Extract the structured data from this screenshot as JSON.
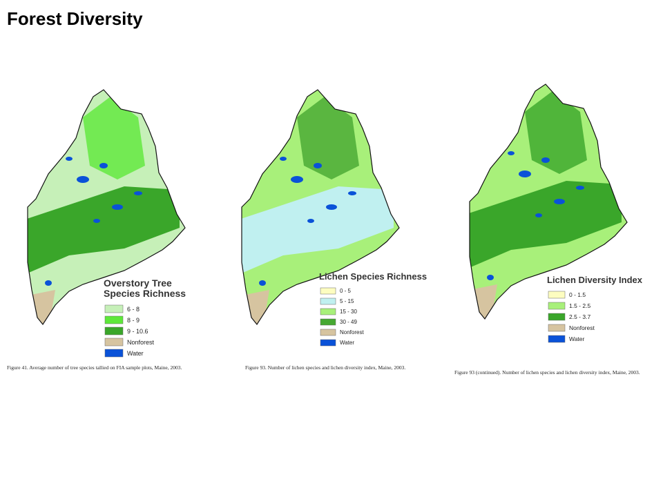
{
  "title": "Forest Diversity",
  "panels": [
    {
      "legend_title": [
        "Overstory Tree",
        "Species Richness"
      ],
      "items": [
        {
          "label": "6 - 8",
          "color": "#c6f0b8"
        },
        {
          "label": "8 - 9",
          "color": "#5ee83a"
        },
        {
          "label": "9 - 10.6",
          "color": "#3aa62a"
        },
        {
          "label": "Nonforest",
          "color": "#d6c4a0"
        },
        {
          "label": "Water",
          "color": "#0a52d8"
        }
      ],
      "caption": "Figure 41.  Average number of tree species tallied on FIA sample plots, Maine, 2003."
    },
    {
      "legend_title": [
        "Lichen Species Richness"
      ],
      "items": [
        {
          "label": "0 - 5",
          "color": "#fdfdc0"
        },
        {
          "label": "5 - 15",
          "color": "#c0f0f0"
        },
        {
          "label": "15 - 30",
          "color": "#a8f07a"
        },
        {
          "label": "30 - 49",
          "color": "#46a832"
        },
        {
          "label": "Nonforest",
          "color": "#d6c4a0"
        },
        {
          "label": "Water",
          "color": "#0a52d8"
        }
      ],
      "caption": "Figure 93.  Number of lichen species and lichen diversity index, Maine, 2003."
    },
    {
      "legend_title": [
        "Lichen Diversity Index"
      ],
      "items": [
        {
          "label": "0 - 1.5",
          "color": "#fdfdc0"
        },
        {
          "label": "1.5 - 2.5",
          "color": "#a8f07a"
        },
        {
          "label": "2.5 - 3.7",
          "color": "#3aa62a"
        },
        {
          "label": "Nonforest",
          "color": "#d6c4a0"
        },
        {
          "label": "Water",
          "color": "#0a52d8"
        }
      ],
      "caption": "Figure 93 (continued).  Number of lichen species and lichen diversity index, Maine, 2003."
    }
  ]
}
